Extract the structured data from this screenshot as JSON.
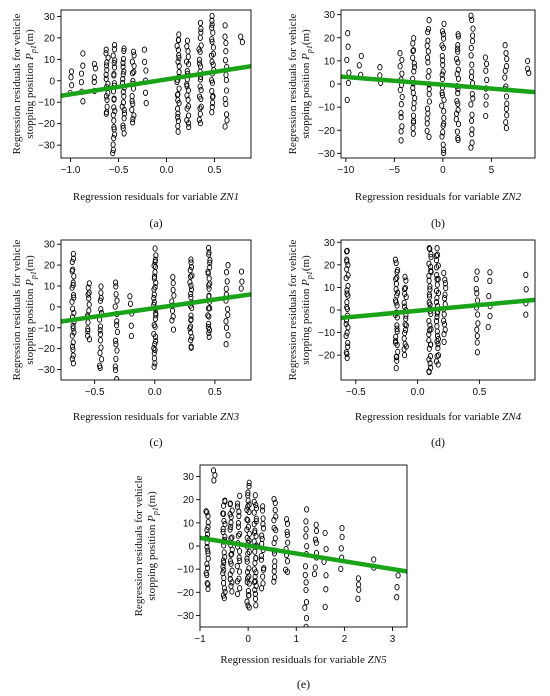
{
  "figure": {
    "background": "#ffffff",
    "trend_color": "#1aa319",
    "point_color": "#000000"
  },
  "chart_data": [
    {
      "type": "scatter",
      "panel": "(a)",
      "xlabel": "Regression residuals for variable ZN1",
      "ylabel": [
        "Regression residuals for vehicle",
        "stopping position P_p1(m)"
      ],
      "xlim": [
        -1.1,
        0.88
      ],
      "ylim": [
        -36,
        33
      ],
      "xticks": [
        -1.0,
        -0.5,
        0.0,
        0.5
      ],
      "xtick_labels": [
        "−1.0",
        "−0.5",
        "0.0",
        "0.5"
      ],
      "yticks": [
        -30,
        -20,
        -10,
        0,
        10,
        20,
        30
      ],
      "ytick_labels": [
        "−30",
        "−20",
        "−10",
        "0",
        "10",
        "20",
        "30"
      ],
      "trend": {
        "x": [
          -1.1,
          0.88
        ],
        "y": [
          -7.0,
          6.8
        ]
      },
      "columns": [
        {
          "x": -1.0,
          "ymin": -6,
          "ymax": 5,
          "n": 4
        },
        {
          "x": -0.88,
          "ymin": -10,
          "ymax": 12,
          "n": 6
        },
        {
          "x": -0.75,
          "ymin": -4,
          "ymax": 8,
          "n": 5
        },
        {
          "x": -0.62,
          "ymin": -16,
          "ymax": 15,
          "n": 16
        },
        {
          "x": -0.55,
          "ymin": -34,
          "ymax": 17,
          "n": 24
        },
        {
          "x": -0.45,
          "ymin": -24,
          "ymax": 15,
          "n": 20
        },
        {
          "x": -0.35,
          "ymin": -20,
          "ymax": 14,
          "n": 16
        },
        {
          "x": -0.22,
          "ymin": -10,
          "ymax": 14,
          "n": 6
        },
        {
          "x": 0.12,
          "ymin": -23,
          "ymax": 22,
          "n": 24
        },
        {
          "x": 0.22,
          "ymin": -22,
          "ymax": 18,
          "n": 20
        },
        {
          "x": 0.35,
          "ymin": -20,
          "ymax": 26,
          "n": 22
        },
        {
          "x": 0.48,
          "ymin": -15,
          "ymax": 31,
          "n": 22
        },
        {
          "x": 0.62,
          "ymin": -22,
          "ymax": 25,
          "n": 14
        },
        {
          "x": 0.78,
          "ymin": 18,
          "ymax": 20,
          "n": 2
        }
      ]
    },
    {
      "type": "scatter",
      "panel": "(b)",
      "xlabel": "Regression residuals for variable ZN2",
      "ylabel": [
        "Regression residuals for vehicle",
        "stopping position P_p1(m)"
      ],
      "xlim": [
        -10.5,
        9.5
      ],
      "ylim": [
        -32,
        32
      ],
      "xticks": [
        -10,
        -5,
        0,
        5
      ],
      "xtick_labels": [
        "−10",
        "−5",
        "0",
        "5"
      ],
      "yticks": [
        -30,
        -20,
        -10,
        0,
        10,
        20,
        30
      ],
      "ytick_labels": [
        "−30",
        "−20",
        "−10",
        "0",
        "10",
        "20",
        "30"
      ],
      "trend": {
        "x": [
          -10.5,
          9.5
        ],
        "y": [
          3.2,
          -3.5
        ]
      },
      "columns": [
        {
          "x": -9.8,
          "ymin": -6,
          "ymax": 22,
          "n": 6
        },
        {
          "x": -8.5,
          "ymin": 4,
          "ymax": 12,
          "n": 3
        },
        {
          "x": -6.5,
          "ymin": 0,
          "ymax": 8,
          "n": 3
        },
        {
          "x": -4.3,
          "ymin": -24,
          "ymax": 14,
          "n": 14
        },
        {
          "x": -3.0,
          "ymin": -22,
          "ymax": 20,
          "n": 20
        },
        {
          "x": -1.5,
          "ymin": -23,
          "ymax": 27,
          "n": 20
        },
        {
          "x": 0.0,
          "ymin": -30,
          "ymax": 26,
          "n": 26
        },
        {
          "x": 1.5,
          "ymin": -25,
          "ymax": 22,
          "n": 22
        },
        {
          "x": 3.0,
          "ymin": -28,
          "ymax": 30,
          "n": 20
        },
        {
          "x": 4.5,
          "ymin": -13,
          "ymax": 12,
          "n": 8
        },
        {
          "x": 6.5,
          "ymin": -20,
          "ymax": 17,
          "n": 14
        },
        {
          "x": 8.8,
          "ymin": 5,
          "ymax": 10,
          "n": 3
        }
      ]
    },
    {
      "type": "scatter",
      "panel": "(c)",
      "xlabel": "Regression residuals for variable ZN3",
      "ylabel": [
        "Regression residuals for vehicle",
        "stopping position P_p1(m)"
      ],
      "xlim": [
        -0.78,
        0.8
      ],
      "ylim": [
        -35,
        32
      ],
      "xticks": [
        -0.5,
        0.0,
        0.5
      ],
      "xtick_labels": [
        "−0.5",
        "0.0",
        "0.5"
      ],
      "yticks": [
        -30,
        -20,
        -10,
        0,
        10,
        20,
        30
      ],
      "ytick_labels": [
        "−30",
        "−20",
        "−10",
        "0",
        "10",
        "20",
        "30"
      ],
      "trend": {
        "x": [
          -0.78,
          0.8
        ],
        "y": [
          -7.0,
          6.0
        ]
      },
      "columns": [
        {
          "x": -0.68,
          "ymin": -27,
          "ymax": 25,
          "n": 26
        },
        {
          "x": -0.55,
          "ymin": -16,
          "ymax": 12,
          "n": 14
        },
        {
          "x": -0.45,
          "ymin": -30,
          "ymax": 10,
          "n": 16
        },
        {
          "x": -0.32,
          "ymin": -34,
          "ymax": 12,
          "n": 16
        },
        {
          "x": -0.2,
          "ymin": -13,
          "ymax": 6,
          "n": 5
        },
        {
          "x": 0.0,
          "ymin": -28,
          "ymax": 27,
          "n": 32
        },
        {
          "x": 0.15,
          "ymin": -10,
          "ymax": 14,
          "n": 10
        },
        {
          "x": 0.3,
          "ymin": -20,
          "ymax": 23,
          "n": 24
        },
        {
          "x": 0.45,
          "ymin": -15,
          "ymax": 29,
          "n": 24
        },
        {
          "x": 0.6,
          "ymin": -17,
          "ymax": 19,
          "n": 12
        },
        {
          "x": 0.72,
          "ymin": 8,
          "ymax": 17,
          "n": 3
        }
      ]
    },
    {
      "type": "scatter",
      "panel": "(d)",
      "xlabel": "Regression residuals for variable ZN4",
      "ylabel": [
        "Regression residuals for vehicle",
        "stopping position P_p1(m)"
      ],
      "xlim": [
        -0.62,
        0.95
      ],
      "ylim": [
        -31,
        31
      ],
      "xticks": [
        -0.5,
        0.0,
        0.5
      ],
      "xtick_labels": [
        "−0.5",
        "0.0",
        "0.5"
      ],
      "yticks": [
        -20,
        -10,
        0,
        10,
        20,
        30
      ],
      "ytick_labels": [
        "−20",
        "−10",
        "0",
        "10",
        "20",
        "30"
      ],
      "trend": {
        "x": [
          -0.62,
          0.95
        ],
        "y": [
          -3.5,
          4.5
        ]
      },
      "columns": [
        {
          "x": -0.57,
          "ymin": -22,
          "ymax": 27,
          "n": 26
        },
        {
          "x": -0.17,
          "ymin": -25,
          "ymax": 22,
          "n": 28
        },
        {
          "x": -0.1,
          "ymin": -20,
          "ymax": 14,
          "n": 20
        },
        {
          "x": 0.1,
          "ymin": -28,
          "ymax": 28,
          "n": 34
        },
        {
          "x": 0.16,
          "ymin": -25,
          "ymax": 27,
          "n": 30
        },
        {
          "x": 0.22,
          "ymin": -14,
          "ymax": 16,
          "n": 14
        },
        {
          "x": 0.48,
          "ymin": -18,
          "ymax": 16,
          "n": 12
        },
        {
          "x": 0.58,
          "ymin": -8,
          "ymax": 17,
          "n": 6
        },
        {
          "x": 0.88,
          "ymin": -2,
          "ymax": 16,
          "n": 4
        }
      ]
    },
    {
      "type": "scatter",
      "panel": "(e)",
      "xlabel": "Regression residuals for variable ZN5",
      "ylabel": [
        "Regression residuals for vehicle",
        "stopping position P_p1(m)"
      ],
      "xlim": [
        -1.0,
        3.3
      ],
      "ylim": [
        -35,
        35
      ],
      "xticks": [
        -1,
        0,
        1,
        2,
        3
      ],
      "xtick_labels": [
        "−1",
        "0",
        "1",
        "2",
        "3"
      ],
      "yticks": [
        -30,
        -20,
        -10,
        0,
        10,
        20,
        30
      ],
      "ytick_labels": [
        "−30",
        "−20",
        "−10",
        "0",
        "10",
        "20",
        "30"
      ],
      "trend": {
        "x": [
          -1.0,
          3.3
        ],
        "y": [
          3.5,
          -11.0
        ]
      },
      "columns": [
        {
          "x": -0.85,
          "ymin": -19,
          "ymax": 16,
          "n": 20
        },
        {
          "x": -0.7,
          "ymin": 29,
          "ymax": 33,
          "n": 3
        },
        {
          "x": -0.5,
          "ymin": -23,
          "ymax": 20,
          "n": 26
        },
        {
          "x": -0.35,
          "ymin": -19,
          "ymax": 19,
          "n": 22
        },
        {
          "x": -0.2,
          "ymin": -20,
          "ymax": 21,
          "n": 20
        },
        {
          "x": 0.0,
          "ymin": -27,
          "ymax": 27,
          "n": 34
        },
        {
          "x": 0.15,
          "ymin": -25,
          "ymax": 21,
          "n": 28
        },
        {
          "x": 0.3,
          "ymin": -18,
          "ymax": 17,
          "n": 16
        },
        {
          "x": 0.55,
          "ymin": -15,
          "ymax": 20,
          "n": 16
        },
        {
          "x": 0.8,
          "ymin": -12,
          "ymax": 12,
          "n": 10
        },
        {
          "x": 1.2,
          "ymin": -35,
          "ymax": 15,
          "n": 14
        },
        {
          "x": 1.4,
          "ymin": -12,
          "ymax": 10,
          "n": 8
        },
        {
          "x": 1.6,
          "ymin": -26,
          "ymax": 6,
          "n": 6
        },
        {
          "x": 1.95,
          "ymin": -10,
          "ymax": 8,
          "n": 5
        },
        {
          "x": 2.3,
          "ymin": -22,
          "ymax": -14,
          "n": 4
        },
        {
          "x": 2.6,
          "ymin": -10,
          "ymax": -5,
          "n": 2
        },
        {
          "x": 3.1,
          "ymin": -22,
          "ymax": -12,
          "n": 3
        }
      ]
    }
  ]
}
